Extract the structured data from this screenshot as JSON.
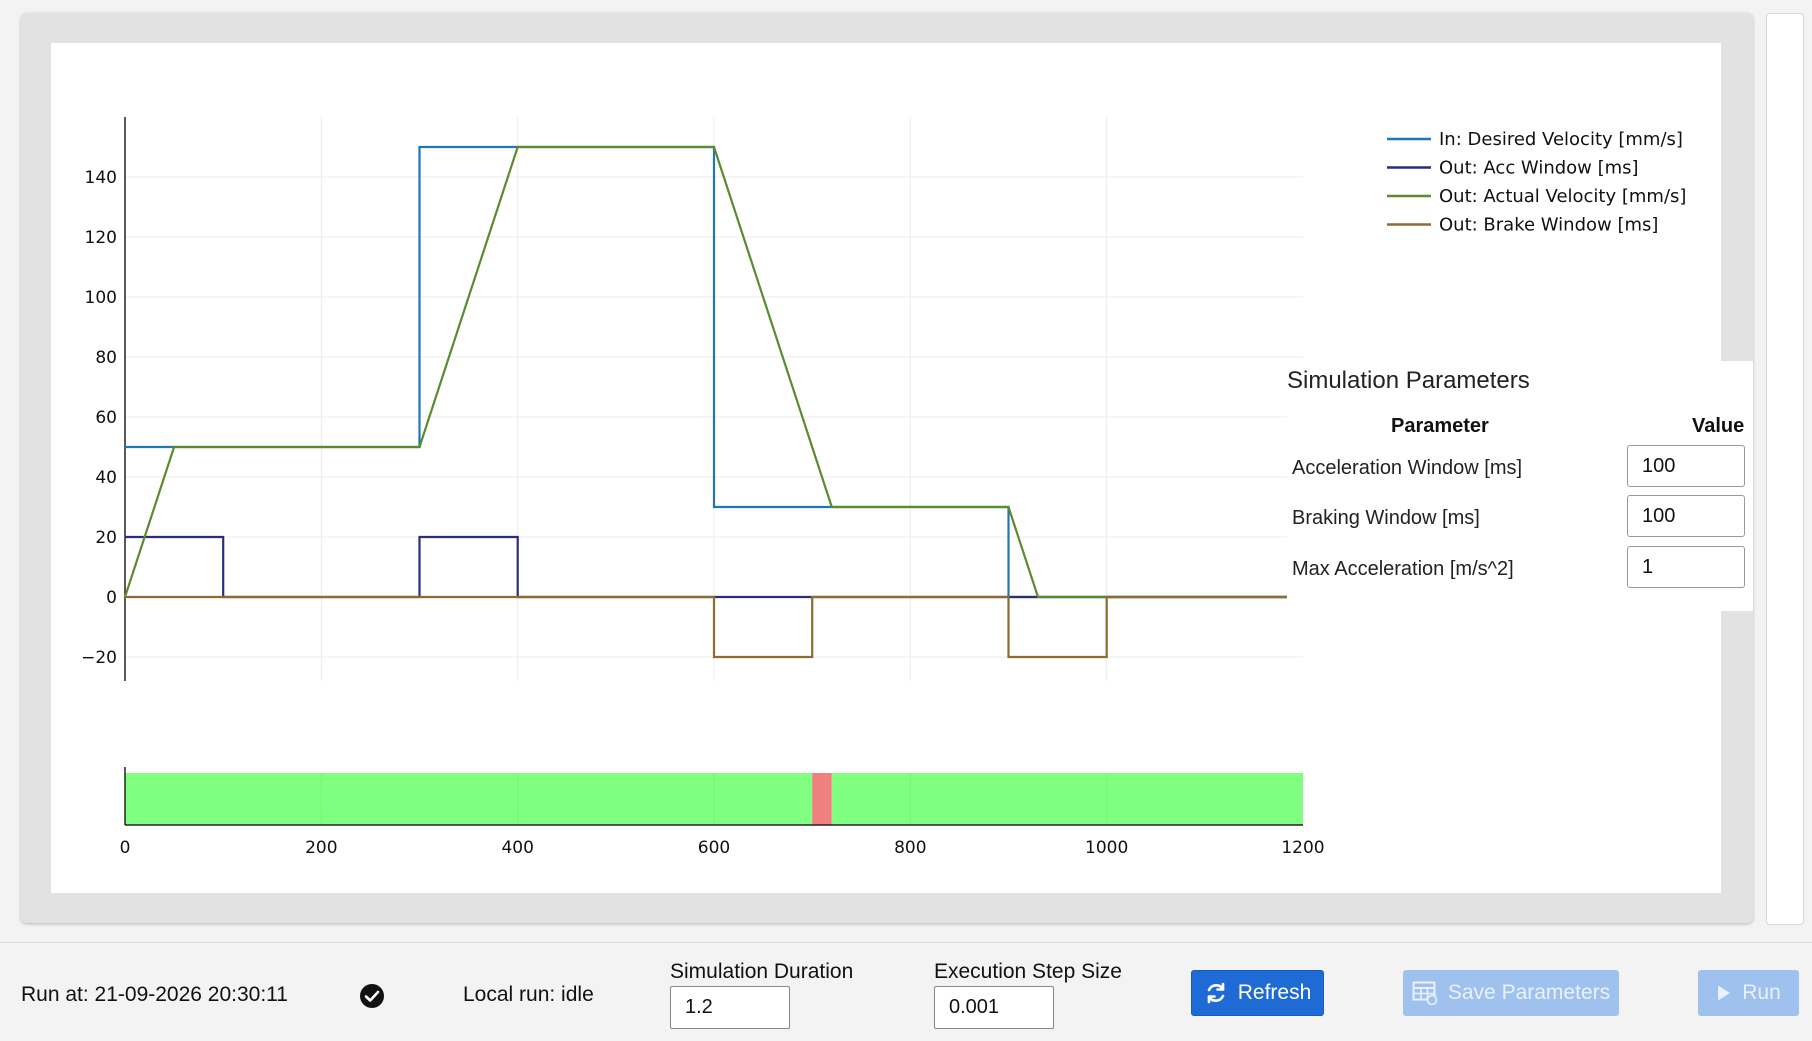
{
  "chart_data": [
    {
      "type": "line",
      "x_range": [
        0,
        1200
      ],
      "ylim": [
        -30,
        160
      ],
      "y_ticks": [
        -20,
        0,
        20,
        40,
        60,
        80,
        100,
        120,
        140
      ],
      "y_tick_labels": [
        "−20",
        "0",
        "20",
        "40",
        "60",
        "80",
        "100",
        "120",
        "140"
      ],
      "x_ticks": [
        200,
        400,
        600,
        800,
        1000
      ],
      "grid": true,
      "legend_position": "top-right",
      "series": [
        {
          "name": "In: Desired Velocity [mm/s]",
          "color": "#1f77b4",
          "x": [
            0,
            300,
            300,
            600,
            600,
            900,
            900,
            1200
          ],
          "y": [
            50,
            50,
            150,
            150,
            30,
            30,
            0,
            0
          ]
        },
        {
          "name": "Out: Acc Window [ms]",
          "color": "#2b2d7c",
          "x": [
            0,
            100,
            100,
            300,
            300,
            400,
            400,
            1200
          ],
          "y": [
            20,
            20,
            0,
            0,
            20,
            20,
            0,
            0
          ]
        },
        {
          "name": "Out: Actual Velocity [mm/s]",
          "color": "#5e8a2e",
          "x": [
            0,
            50,
            300,
            400,
            600,
            720,
            900,
            930,
            1200
          ],
          "y": [
            0,
            50,
            50,
            150,
            150,
            30,
            30,
            0,
            0
          ]
        },
        {
          "name": "Out: Brake Window [ms]",
          "color": "#8b6d2f",
          "x": [
            0,
            600,
            600,
            700,
            700,
            900,
            900,
            1000,
            1000,
            1200
          ],
          "y": [
            0,
            0,
            -20,
            -20,
            0,
            0,
            -20,
            -20,
            0,
            0
          ]
        }
      ]
    },
    {
      "type": "area",
      "x_range": [
        0,
        1200
      ],
      "x_ticks": [
        0,
        200,
        400,
        600,
        800,
        1000,
        1200
      ],
      "x_tick_labels": [
        "0",
        "200",
        "400",
        "600",
        "800",
        "1000",
        "1200"
      ],
      "segments": [
        {
          "start": 0,
          "end": 700,
          "color": "#80ff80"
        },
        {
          "start": 700,
          "end": 720,
          "color": "#f08080"
        },
        {
          "start": 720,
          "end": 1200,
          "color": "#80ff80"
        }
      ]
    }
  ],
  "params": {
    "title": "Simulation Parameters",
    "header_param": "Parameter",
    "header_value": "Value",
    "rows": [
      {
        "label": "Acceleration Window [ms]",
        "value": "100"
      },
      {
        "label": "Braking Window [ms]",
        "value": "100"
      },
      {
        "label": "Max Acceleration [m/s^2]",
        "value": "1"
      }
    ]
  },
  "bottom": {
    "run_at": "Run at: 21-09-2026 20:30:11",
    "status_icon": "check-circle-icon",
    "local_run": "Local run: idle",
    "sim_duration_label": "Simulation Duration",
    "sim_duration_value": "1.2",
    "step_size_label": "Execution Step Size",
    "step_size_value": "0.001",
    "refresh_label": "Refresh",
    "refresh_icon": "refresh-icon",
    "save_label": "Save Parameters",
    "save_icon": "save-table-icon",
    "run_label": "Run",
    "run_icon": "play-icon"
  },
  "colors": {
    "accent": "#1f6bd6",
    "disabled_button": "#9fc1ee",
    "ok_status": "#80ff80",
    "fault_status": "#f08080"
  }
}
